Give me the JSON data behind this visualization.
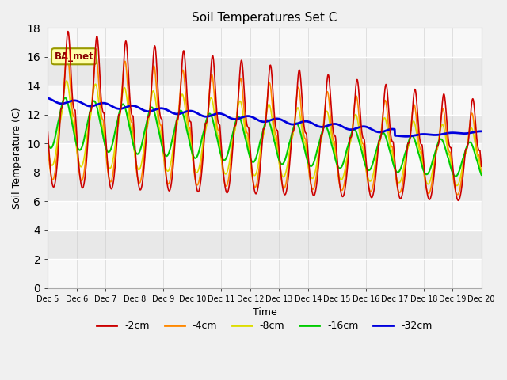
{
  "title": "Soil Temperatures Set C",
  "xlabel": "Time",
  "ylabel": "Soil Temperature (C)",
  "ylim": [
    0,
    18
  ],
  "n_days": 15,
  "n_points_per_day": 96,
  "annotation_text": "BA_met",
  "series": {
    "-2cm": {
      "color": "#cc0000",
      "lw": 1.2
    },
    "-4cm": {
      "color": "#ff8800",
      "lw": 1.2
    },
    "-8cm": {
      "color": "#dddd00",
      "lw": 1.2
    },
    "-16cm": {
      "color": "#00cc00",
      "lw": 1.5
    },
    "-32cm": {
      "color": "#0000dd",
      "lw": 2.0
    }
  },
  "tick_labels": [
    "Dec 5",
    "Dec 6",
    "Dec 7",
    "Dec 8",
    "Dec 9",
    "Dec 10",
    "Dec 11",
    "Dec 12",
    "Dec 13",
    "Dec 14",
    "Dec 15",
    "Dec 16",
    "Dec 17",
    "Dec 18",
    "Dec 19",
    "Dec 20"
  ],
  "band_colors": [
    "#f0f0f0",
    "#e0e0e0"
  ],
  "fig_bg": "#f0f0f0",
  "figsize": [
    6.4,
    4.8
  ],
  "dpi": 100
}
